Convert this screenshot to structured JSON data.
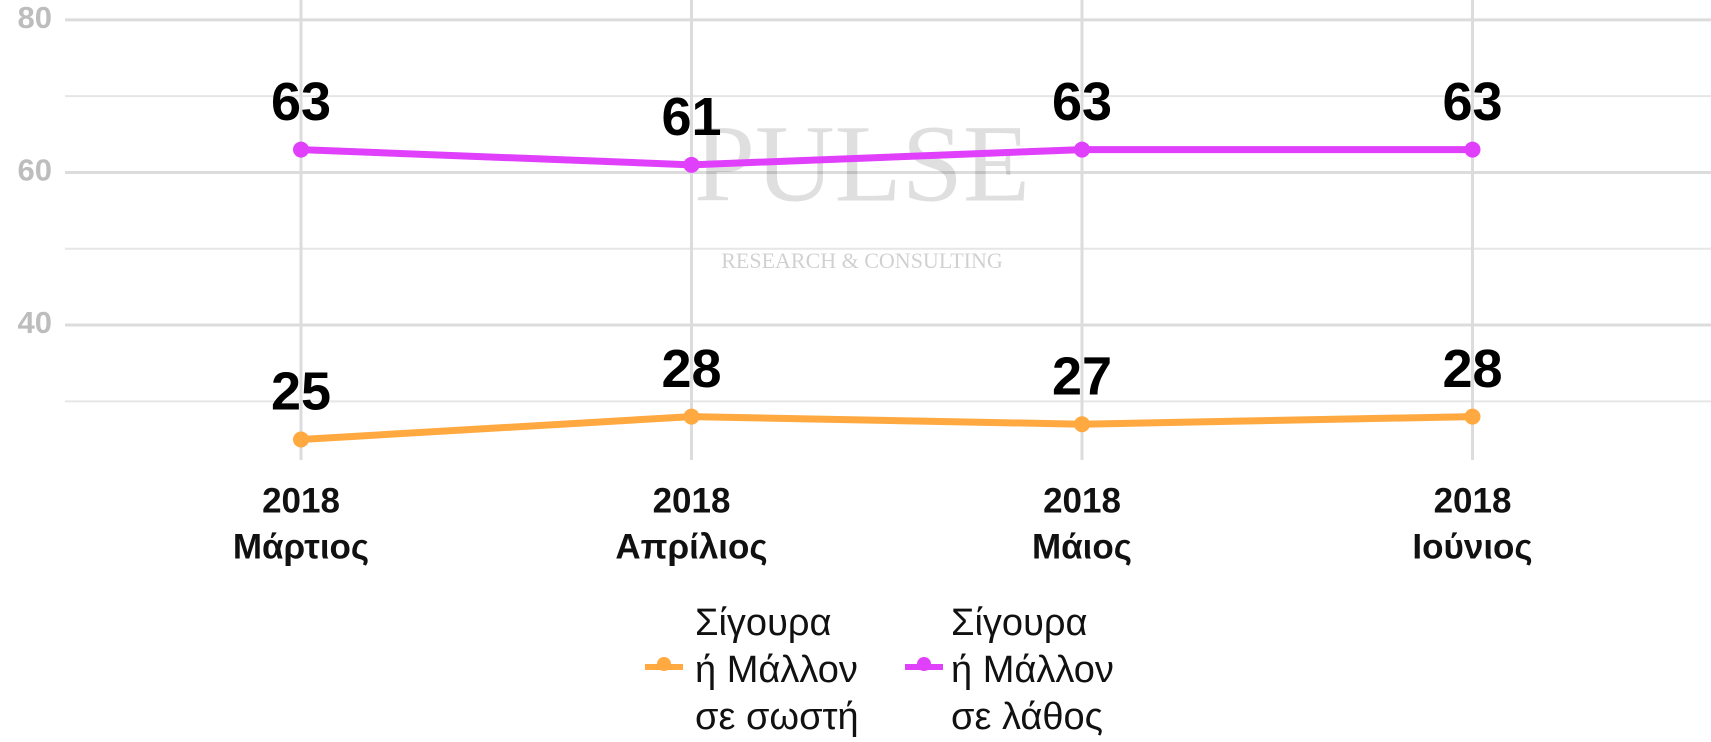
{
  "chart_data": {
    "type": "line",
    "categories": [
      [
        "2018",
        "Μάρτιος"
      ],
      [
        "2018",
        "Απρίλιος"
      ],
      [
        "2018",
        "Μάιος"
      ],
      [
        "2018",
        "Ιούνιος"
      ]
    ],
    "series": [
      {
        "name": "Σίγουρα\nή Μάλλον\nσε σωστή",
        "color": "#ffa940",
        "values": [
          25,
          28,
          27,
          28
        ]
      },
      {
        "name": "Σίγουρα\nή Μάλλον\nσε λάθος",
        "color": "#e040fb",
        "values": [
          63,
          61,
          63,
          63
        ]
      }
    ],
    "ylim": [
      21,
      83
    ],
    "yticks": [
      40,
      60,
      80
    ],
    "minor_yticks": [
      30,
      50,
      70
    ],
    "grid": true,
    "watermark": "PULSE",
    "watermark_sub": "RESEARCH & CONSULTING"
  }
}
